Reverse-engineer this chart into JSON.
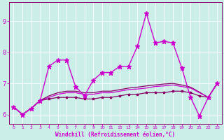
{
  "title": "Windchill (Refroidissement éolien,°C)",
  "bg_color": "#cceee8",
  "line_color_bright": "#cc00cc",
  "line_color_dark": "#880066",
  "xlim": [
    -0.5,
    23.5
  ],
  "ylim": [
    5.7,
    9.6
  ],
  "xticks": [
    0,
    1,
    2,
    3,
    4,
    5,
    6,
    7,
    8,
    9,
    10,
    11,
    12,
    13,
    14,
    15,
    16,
    17,
    18,
    19,
    20,
    21,
    22,
    23
  ],
  "yticks": [
    6,
    7,
    8,
    9
  ],
  "series1": [
    6.25,
    6.0,
    6.2,
    6.45,
    7.55,
    7.75,
    7.75,
    6.9,
    6.6,
    7.1,
    7.35,
    7.35,
    7.55,
    7.55,
    8.2,
    9.25,
    8.3,
    8.35,
    8.3,
    7.5,
    6.55,
    5.95,
    6.55,
    7.0
  ],
  "series2": [
    6.25,
    6.0,
    6.2,
    6.45,
    6.5,
    6.55,
    6.55,
    6.55,
    6.5,
    6.5,
    6.55,
    6.55,
    6.6,
    6.65,
    6.65,
    6.7,
    6.7,
    6.7,
    6.75,
    6.75,
    6.7,
    6.6,
    6.55,
    7.0
  ],
  "series3": [
    6.25,
    6.0,
    6.2,
    6.45,
    6.55,
    6.65,
    6.7,
    6.7,
    6.65,
    6.65,
    6.7,
    6.7,
    6.75,
    6.8,
    6.82,
    6.85,
    6.9,
    6.92,
    6.95,
    6.9,
    6.85,
    6.7,
    6.55,
    7.0
  ],
  "series4": [
    6.25,
    6.0,
    6.2,
    6.45,
    6.6,
    6.7,
    6.75,
    6.75,
    6.7,
    6.7,
    6.75,
    6.75,
    6.8,
    6.85,
    6.88,
    6.92,
    6.95,
    6.98,
    7.0,
    6.95,
    6.88,
    6.72,
    6.55,
    7.0
  ]
}
